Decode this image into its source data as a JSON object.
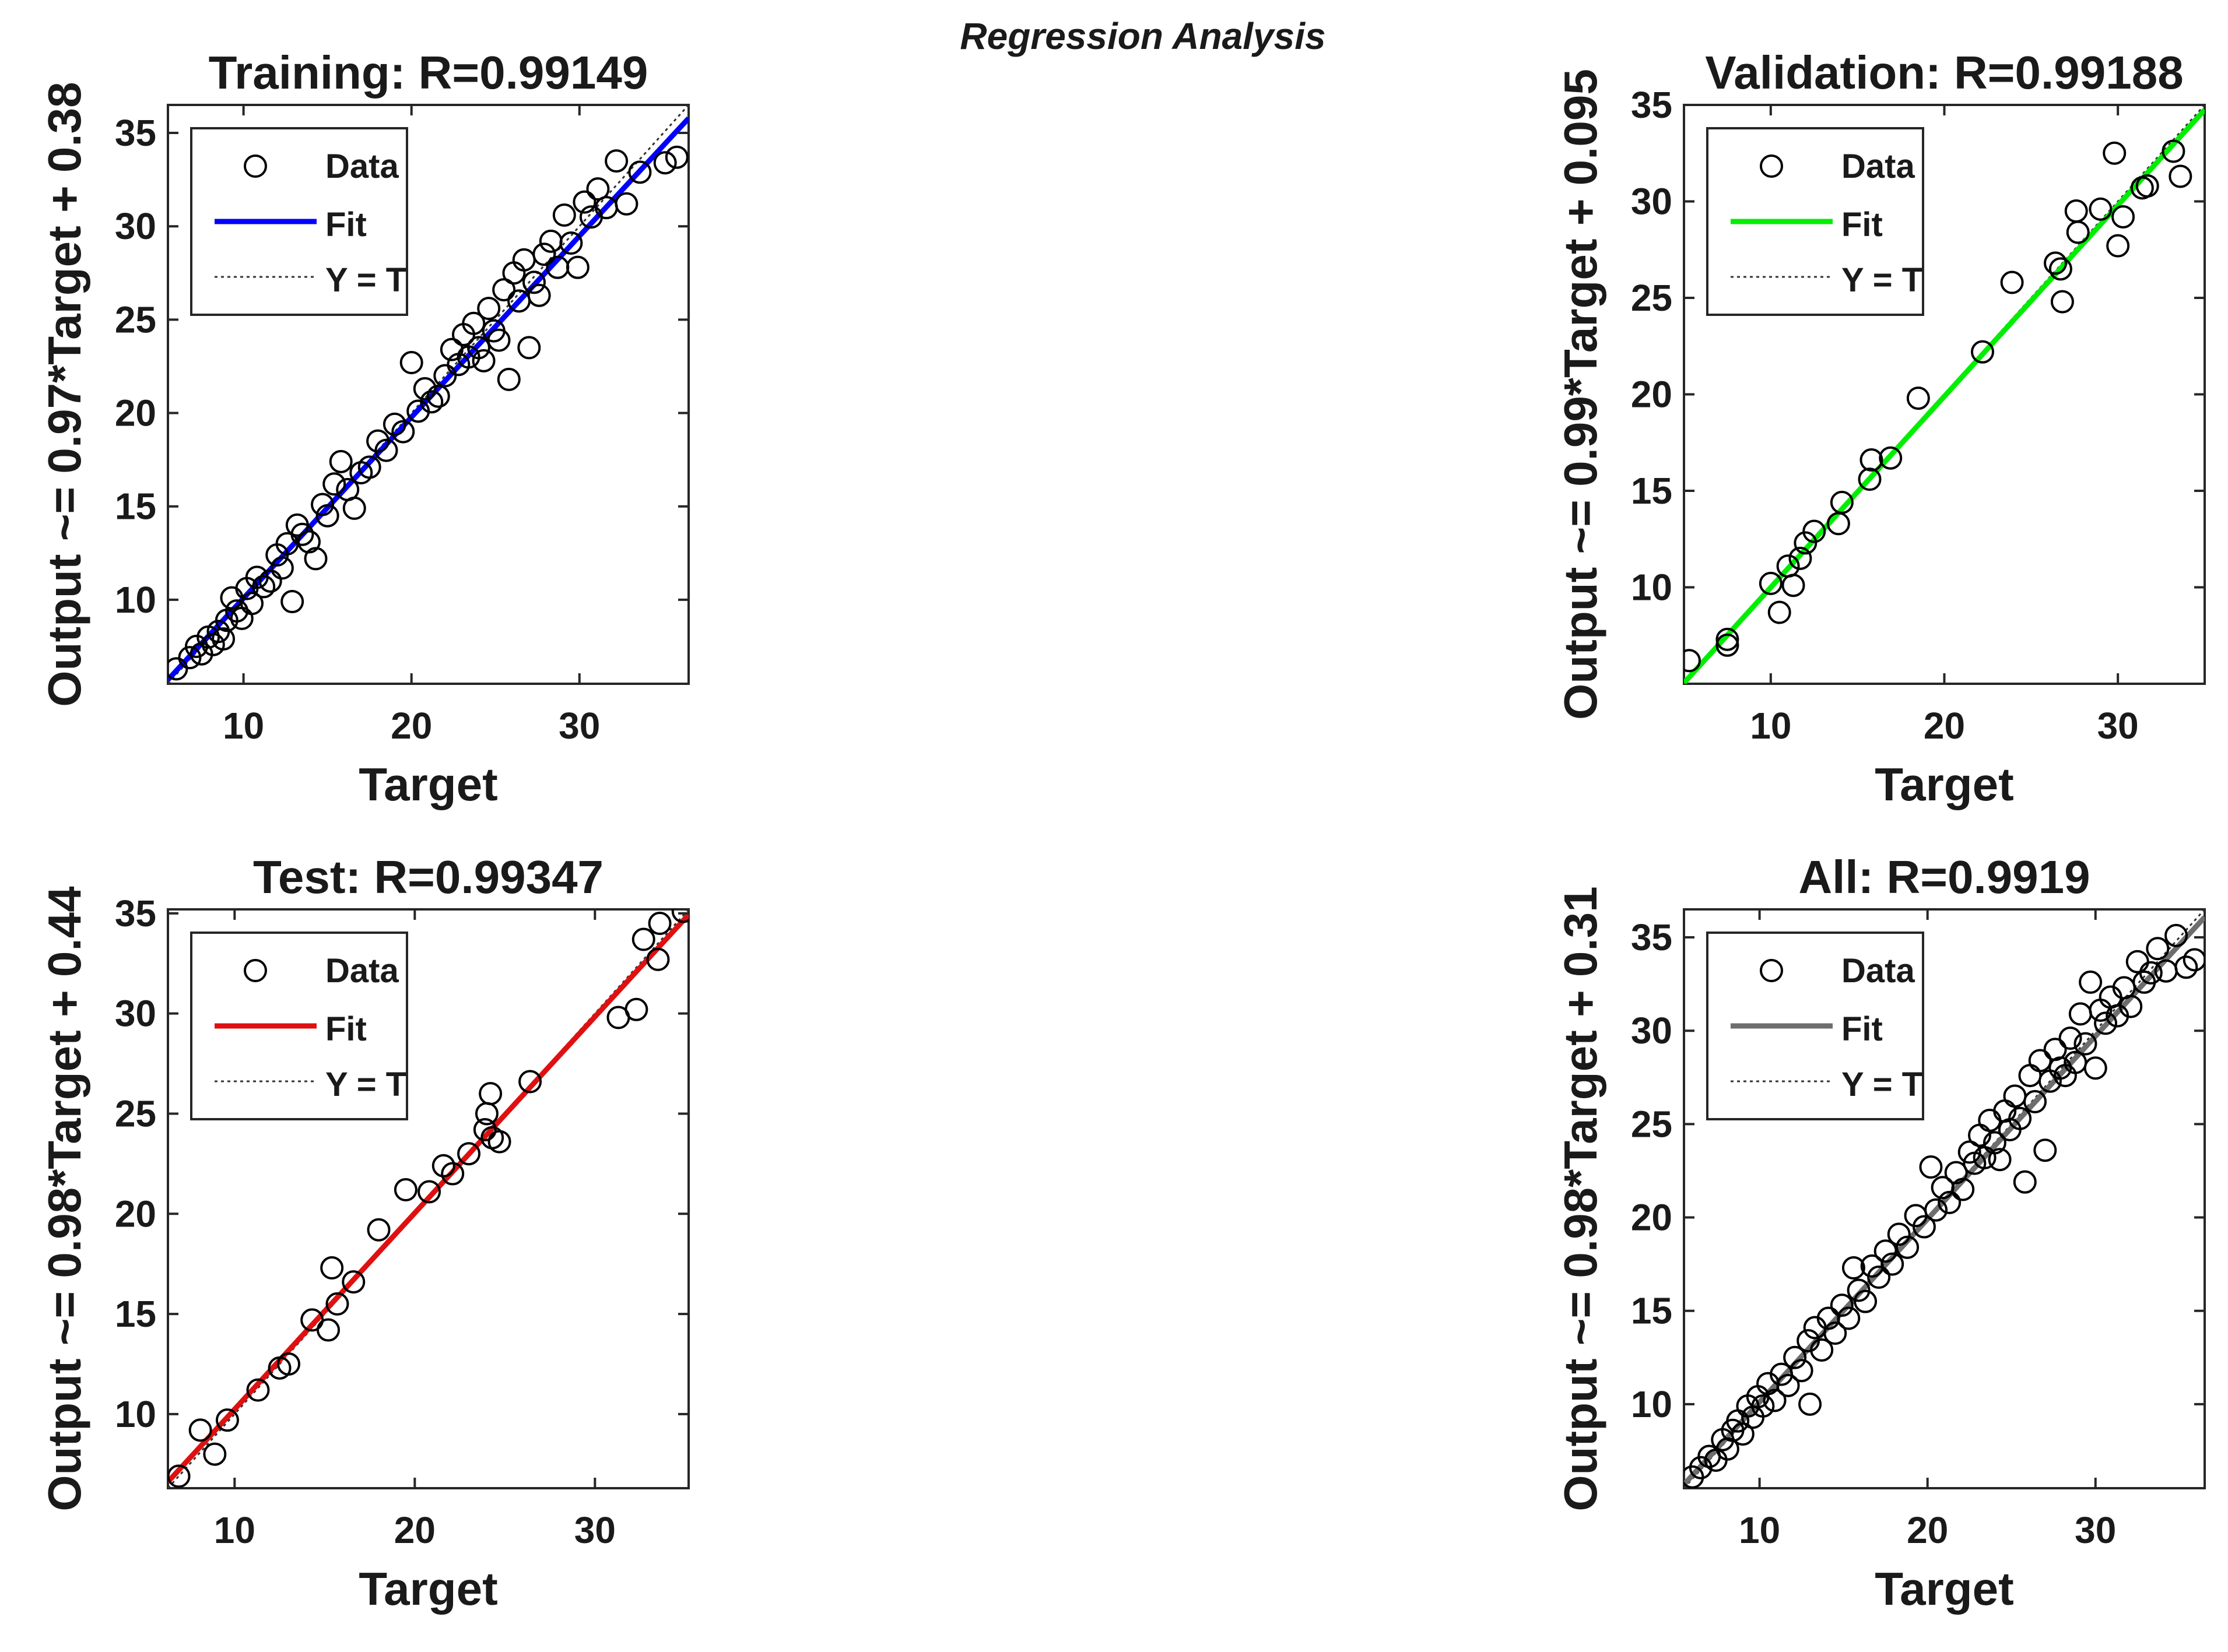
{
  "figure_title": "Regression Analysis",
  "chart_data": [
    {
      "type": "scatter",
      "id": "training",
      "title": "Training: R=0.99149",
      "xlabel": "Target",
      "ylabel": "Output ~= 0.97*Target + 0.38",
      "xlim": [
        5.5,
        36.5
      ],
      "ylim": [
        5.5,
        36.5
      ],
      "xticks": [
        10,
        20,
        30
      ],
      "yticks": [
        10,
        15,
        20,
        25,
        30,
        35
      ],
      "fit": {
        "slope": 0.97,
        "intercept": 0.38,
        "color": "#0000ff"
      },
      "legend": {
        "position": "top-left",
        "entries": [
          "Data",
          "Fit",
          "Y = T"
        ]
      },
      "points": [
        [
          6.0,
          6.3
        ],
        [
          6.8,
          6.9
        ],
        [
          7.2,
          7.5
        ],
        [
          7.5,
          7.1
        ],
        [
          7.9,
          8.0
        ],
        [
          8.2,
          7.6
        ],
        [
          8.5,
          8.3
        ],
        [
          8.8,
          7.9
        ],
        [
          9.0,
          8.9
        ],
        [
          9.3,
          10.1
        ],
        [
          9.6,
          9.4
        ],
        [
          9.9,
          9.0
        ],
        [
          10.2,
          10.6
        ],
        [
          10.5,
          9.8
        ],
        [
          10.8,
          11.2
        ],
        [
          11.2,
          10.7
        ],
        [
          11.6,
          11.0
        ],
        [
          12.0,
          12.4
        ],
        [
          12.3,
          11.7
        ],
        [
          12.6,
          13.0
        ],
        [
          12.9,
          9.9
        ],
        [
          13.2,
          14.0
        ],
        [
          13.5,
          13.5
        ],
        [
          13.9,
          13.1
        ],
        [
          14.3,
          12.2
        ],
        [
          14.7,
          15.1
        ],
        [
          15.0,
          14.5
        ],
        [
          15.4,
          16.2
        ],
        [
          15.8,
          17.4
        ],
        [
          16.2,
          15.9
        ],
        [
          16.6,
          14.9
        ],
        [
          17.0,
          16.8
        ],
        [
          17.5,
          17.1
        ],
        [
          18.0,
          18.5
        ],
        [
          18.5,
          18.0
        ],
        [
          19.0,
          19.4
        ],
        [
          19.5,
          19.0
        ],
        [
          20.0,
          22.7
        ],
        [
          20.4,
          20.1
        ],
        [
          20.8,
          21.3
        ],
        [
          21.2,
          20.6
        ],
        [
          21.6,
          20.9
        ],
        [
          22.0,
          22.0
        ],
        [
          22.4,
          23.4
        ],
        [
          22.8,
          22.6
        ],
        [
          23.1,
          24.2
        ],
        [
          23.4,
          23.0
        ],
        [
          23.7,
          24.8
        ],
        [
          24.0,
          23.5
        ],
        [
          24.3,
          22.8
        ],
        [
          24.6,
          25.6
        ],
        [
          24.9,
          24.4
        ],
        [
          25.2,
          23.9
        ],
        [
          25.5,
          26.6
        ],
        [
          25.8,
          21.8
        ],
        [
          26.1,
          27.5
        ],
        [
          26.4,
          26.0
        ],
        [
          26.7,
          28.2
        ],
        [
          27.0,
          23.5
        ],
        [
          27.3,
          27.0
        ],
        [
          27.6,
          26.3
        ],
        [
          27.9,
          28.5
        ],
        [
          28.3,
          29.2
        ],
        [
          28.7,
          27.8
        ],
        [
          29.1,
          30.6
        ],
        [
          29.5,
          29.1
        ],
        [
          29.9,
          27.8
        ],
        [
          30.3,
          31.3
        ],
        [
          30.7,
          30.5
        ],
        [
          31.1,
          32.0
        ],
        [
          31.6,
          31.0
        ],
        [
          32.2,
          33.5
        ],
        [
          32.8,
          31.2
        ],
        [
          33.6,
          32.9
        ],
        [
          35.1,
          33.4
        ],
        [
          35.8,
          33.7
        ]
      ]
    },
    {
      "type": "scatter",
      "id": "validation",
      "title": "Validation: R=0.99188",
      "xlabel": "Target",
      "ylabel": "Output ~= 0.99*Target + 0.095",
      "xlim": [
        5,
        35
      ],
      "ylim": [
        5,
        35
      ],
      "xticks": [
        10,
        20,
        30
      ],
      "yticks": [
        10,
        15,
        20,
        25,
        30,
        35
      ],
      "fit": {
        "slope": 0.99,
        "intercept": 0.095,
        "color": "#00ee00"
      },
      "legend": {
        "position": "top-left",
        "entries": [
          "Data",
          "Fit",
          "Y = T"
        ]
      },
      "points": [
        [
          5.3,
          6.2
        ],
        [
          7.5,
          7.3
        ],
        [
          7.5,
          7.0
        ],
        [
          10.0,
          10.2
        ],
        [
          10.5,
          8.7
        ],
        [
          11.0,
          11.1
        ],
        [
          11.3,
          10.1
        ],
        [
          11.7,
          11.5
        ],
        [
          12.0,
          12.3
        ],
        [
          12.5,
          12.9
        ],
        [
          13.9,
          13.3
        ],
        [
          14.1,
          14.4
        ],
        [
          15.7,
          15.6
        ],
        [
          15.8,
          16.6
        ],
        [
          16.9,
          16.7
        ],
        [
          18.5,
          19.8
        ],
        [
          22.2,
          22.2
        ],
        [
          23.9,
          25.8
        ],
        [
          26.4,
          26.8
        ],
        [
          26.7,
          26.5
        ],
        [
          26.8,
          24.8
        ],
        [
          27.6,
          29.5
        ],
        [
          27.7,
          28.4
        ],
        [
          29.0,
          29.6
        ],
        [
          29.8,
          32.5
        ],
        [
          30.0,
          27.7
        ],
        [
          30.3,
          29.2
        ],
        [
          31.4,
          30.7
        ],
        [
          31.7,
          30.8
        ],
        [
          33.2,
          32.6
        ],
        [
          33.6,
          31.3
        ]
      ]
    },
    {
      "type": "scatter",
      "id": "test",
      "title": "Test: R=0.99347",
      "xlabel": "Target",
      "ylabel": "Output ~= 0.98*Target + 0.44",
      "xlim": [
        6.3,
        35.2
      ],
      "ylim": [
        6.3,
        35.2
      ],
      "xticks": [
        10,
        20,
        30
      ],
      "yticks": [
        10,
        15,
        20,
        25,
        30,
        35
      ],
      "fit": {
        "slope": 0.98,
        "intercept": 0.44,
        "color": "#e01010"
      },
      "legend": {
        "position": "top-left",
        "entries": [
          "Data",
          "Fit",
          "Y = T"
        ]
      },
      "points": [
        [
          6.9,
          6.9
        ],
        [
          8.1,
          9.2
        ],
        [
          8.9,
          8.0
        ],
        [
          9.6,
          9.7
        ],
        [
          11.3,
          11.2
        ],
        [
          12.5,
          12.3
        ],
        [
          13.0,
          12.5
        ],
        [
          14.3,
          14.7
        ],
        [
          15.2,
          14.2
        ],
        [
          15.4,
          17.3
        ],
        [
          15.7,
          15.5
        ],
        [
          16.6,
          16.6
        ],
        [
          18.0,
          19.2
        ],
        [
          19.5,
          21.2
        ],
        [
          20.8,
          21.1
        ],
        [
          21.6,
          22.4
        ],
        [
          22.1,
          22.0
        ],
        [
          23.0,
          23.0
        ],
        [
          23.9,
          24.2
        ],
        [
          24.0,
          25.0
        ],
        [
          24.2,
          26.0
        ],
        [
          24.3,
          23.8
        ],
        [
          24.7,
          23.6
        ],
        [
          26.4,
          26.6
        ],
        [
          31.3,
          29.8
        ],
        [
          32.3,
          30.2
        ],
        [
          32.7,
          33.7
        ],
        [
          33.5,
          32.7
        ],
        [
          33.6,
          34.5
        ],
        [
          34.9,
          35.1
        ]
      ]
    },
    {
      "type": "scatter",
      "id": "all",
      "title": "All: R=0.9919",
      "xlabel": "Target",
      "ylabel": "Output ~= 0.98*Target + 0.31",
      "xlim": [
        5.5,
        36.5
      ],
      "ylim": [
        5.5,
        36.5
      ],
      "xticks": [
        10,
        20,
        30
      ],
      "yticks": [
        10,
        15,
        20,
        25,
        30,
        35
      ],
      "fit": {
        "slope": 0.98,
        "intercept": 0.31,
        "color": "#6e6e6e"
      },
      "legend": {
        "position": "top-left",
        "entries": [
          "Data",
          "Fit",
          "Y = T"
        ]
      },
      "points": [
        [
          6.0,
          6.1
        ],
        [
          6.5,
          6.6
        ],
        [
          7.0,
          7.2
        ],
        [
          7.4,
          7.0
        ],
        [
          7.8,
          8.1
        ],
        [
          8.1,
          7.6
        ],
        [
          8.4,
          8.6
        ],
        [
          8.7,
          9.1
        ],
        [
          9.0,
          8.4
        ],
        [
          9.3,
          9.9
        ],
        [
          9.6,
          9.3
        ],
        [
          9.9,
          10.4
        ],
        [
          10.2,
          9.9
        ],
        [
          10.5,
          11.1
        ],
        [
          10.9,
          10.2
        ],
        [
          11.3,
          11.6
        ],
        [
          11.7,
          11.0
        ],
        [
          12.1,
          12.5
        ],
        [
          12.5,
          11.8
        ],
        [
          12.9,
          13.4
        ],
        [
          13.0,
          10.0
        ],
        [
          13.3,
          14.1
        ],
        [
          13.7,
          12.9
        ],
        [
          14.1,
          14.6
        ],
        [
          14.5,
          13.8
        ],
        [
          14.9,
          15.3
        ],
        [
          15.3,
          14.6
        ],
        [
          15.6,
          17.3
        ],
        [
          15.9,
          16.1
        ],
        [
          16.3,
          15.5
        ],
        [
          16.7,
          17.4
        ],
        [
          17.1,
          16.8
        ],
        [
          17.5,
          18.2
        ],
        [
          17.9,
          17.5
        ],
        [
          18.3,
          19.1
        ],
        [
          18.8,
          18.4
        ],
        [
          19.3,
          20.1
        ],
        [
          19.8,
          19.5
        ],
        [
          20.2,
          22.7
        ],
        [
          20.5,
          20.4
        ],
        [
          20.9,
          21.6
        ],
        [
          21.3,
          20.8
        ],
        [
          21.7,
          22.4
        ],
        [
          22.1,
          21.5
        ],
        [
          22.5,
          23.5
        ],
        [
          22.8,
          22.9
        ],
        [
          23.1,
          24.4
        ],
        [
          23.4,
          23.2
        ],
        [
          23.7,
          25.2
        ],
        [
          24.0,
          24.0
        ],
        [
          24.3,
          23.1
        ],
        [
          24.6,
          25.7
        ],
        [
          24.9,
          24.7
        ],
        [
          25.2,
          26.5
        ],
        [
          25.5,
          25.3
        ],
        [
          25.8,
          21.9
        ],
        [
          26.1,
          27.6
        ],
        [
          26.4,
          26.2
        ],
        [
          26.7,
          28.4
        ],
        [
          27.0,
          23.6
        ],
        [
          27.3,
          27.3
        ],
        [
          27.6,
          29.0
        ],
        [
          27.9,
          28.0
        ],
        [
          28.2,
          27.6
        ],
        [
          28.5,
          29.6
        ],
        [
          28.8,
          28.3
        ],
        [
          29.1,
          30.9
        ],
        [
          29.4,
          29.3
        ],
        [
          29.7,
          32.6
        ],
        [
          30.0,
          28.0
        ],
        [
          30.3,
          31.1
        ],
        [
          30.6,
          30.4
        ],
        [
          30.9,
          31.8
        ],
        [
          31.3,
          30.8
        ],
        [
          31.7,
          32.3
        ],
        [
          32.1,
          31.3
        ],
        [
          32.5,
          33.7
        ],
        [
          32.9,
          32.6
        ],
        [
          33.3,
          33.1
        ],
        [
          33.7,
          34.4
        ],
        [
          34.2,
          33.2
        ],
        [
          34.8,
          35.1
        ],
        [
          35.4,
          33.4
        ],
        [
          35.9,
          33.8
        ]
      ]
    }
  ]
}
